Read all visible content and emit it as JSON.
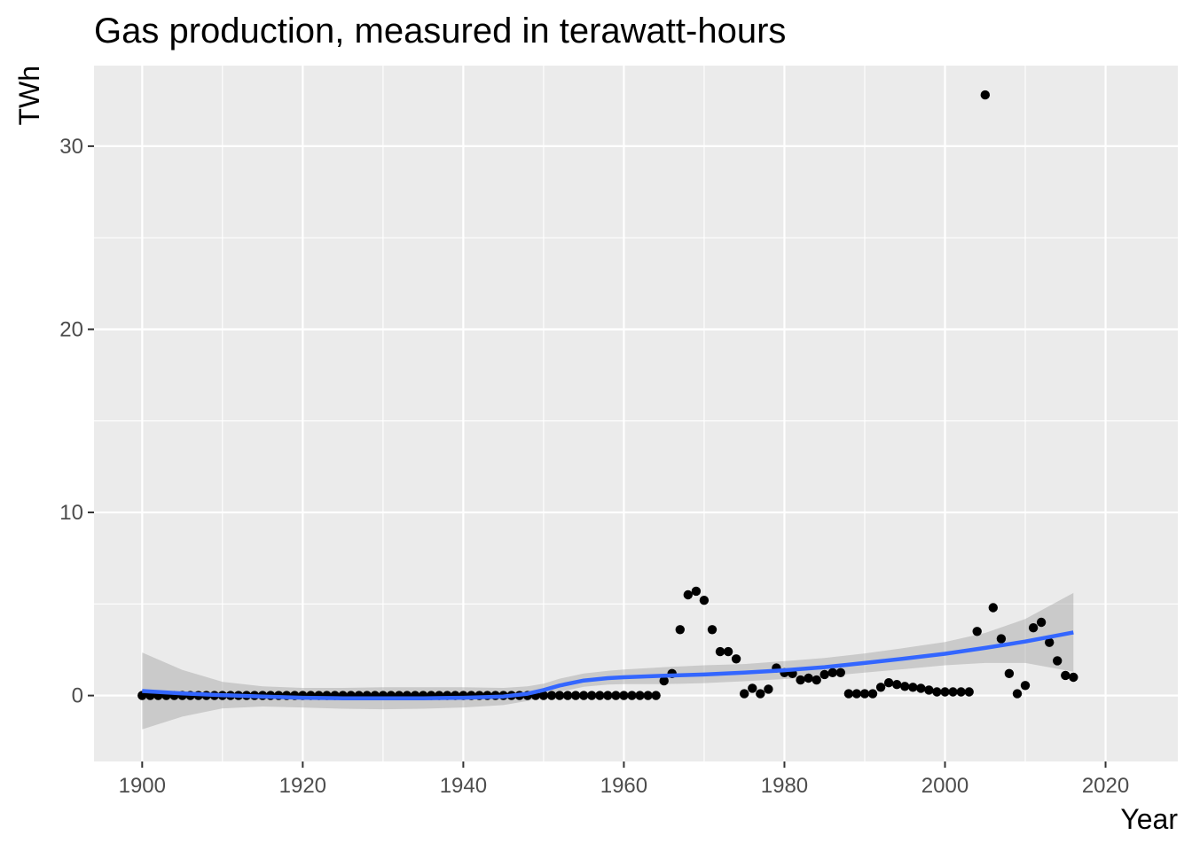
{
  "chart_data": {
    "type": "scatter",
    "title": "Gas production, measured in terawatt-hours",
    "xlabel": "Year",
    "ylabel": "TWh",
    "xlim": [
      1894,
      2029
    ],
    "ylim": [
      -3.6,
      34.4
    ],
    "x_ticks": [
      1900,
      1920,
      1940,
      1960,
      1980,
      2000,
      2020
    ],
    "x_tick_labels": [
      "1900",
      "1920",
      "1940",
      "1960",
      "1980",
      "2000",
      "2020"
    ],
    "y_ticks": [
      0,
      10,
      20,
      30
    ],
    "y_tick_labels": [
      "0",
      "10",
      "20",
      "30"
    ],
    "grid": true,
    "colors": {
      "panel_background": "#ebebeb",
      "grid_line": "#ffffff",
      "points": "#000000",
      "smooth_line": "#3366ff",
      "ribbon": "#999999"
    },
    "series": [
      {
        "type": "scatter",
        "x": [
          1900,
          1901,
          1902,
          1903,
          1904,
          1905,
          1906,
          1907,
          1908,
          1909,
          1910,
          1911,
          1912,
          1913,
          1914,
          1915,
          1916,
          1917,
          1918,
          1919,
          1920,
          1921,
          1922,
          1923,
          1924,
          1925,
          1926,
          1927,
          1928,
          1929,
          1930,
          1931,
          1932,
          1933,
          1934,
          1935,
          1936,
          1937,
          1938,
          1939,
          1940,
          1941,
          1942,
          1943,
          1944,
          1945,
          1946,
          1947,
          1948,
          1949,
          1950,
          1951,
          1952,
          1953,
          1954,
          1955,
          1956,
          1957,
          1958,
          1959,
          1960,
          1961,
          1962,
          1963,
          1964,
          1965,
          1966,
          1967,
          1968,
          1969,
          1970,
          1971,
          1972,
          1973,
          1974,
          1975,
          1976,
          1977,
          1978,
          1979,
          1980,
          1981,
          1982,
          1983,
          1984,
          1985,
          1986,
          1987,
          1988,
          1989,
          1990,
          1991,
          1992,
          1993,
          1994,
          1995,
          1996,
          1997,
          1998,
          1999,
          2000,
          2001,
          2002,
          2003,
          2004,
          2005,
          2006,
          2007,
          2008,
          2009,
          2010,
          2011,
          2012,
          2013,
          2014,
          2015,
          2016
        ],
        "values": [
          0,
          0,
          0,
          0,
          0,
          0,
          0,
          0,
          0,
          0,
          0,
          0,
          0,
          0,
          0,
          0,
          0,
          0,
          0,
          0,
          0,
          0,
          0,
          0,
          0,
          0,
          0,
          0,
          0,
          0,
          0,
          0,
          0,
          0,
          0,
          0,
          0,
          0,
          0,
          0,
          0,
          0,
          0,
          0,
          0,
          0,
          0,
          0,
          0,
          0,
          0,
          0,
          0,
          0,
          0,
          0,
          0,
          0,
          0,
          0,
          0,
          0,
          0,
          0,
          0,
          0.8,
          1.2,
          3.6,
          5.5,
          5.7,
          5.2,
          3.6,
          2.4,
          2.4,
          2,
          0.1,
          0.4,
          0.1,
          0.35,
          1.5,
          1.25,
          1.2,
          0.85,
          0.95,
          0.85,
          1.15,
          1.25,
          1.25,
          0.1,
          0.1,
          0.1,
          0.1,
          0.45,
          0.7,
          0.6,
          0.5,
          0.45,
          0.4,
          0.3,
          0.2,
          0.2,
          0.2,
          0.2,
          0.2,
          3.5,
          32.8,
          4.8,
          3.1,
          1.2,
          0.1,
          0.55,
          3.7,
          4,
          2.9,
          1.9,
          1.1,
          1
        ]
      },
      {
        "type": "line",
        "x": [
          1900,
          1905,
          1910,
          1915,
          1920,
          1925,
          1930,
          1935,
          1940,
          1945,
          1948,
          1950,
          1952,
          1955,
          1958,
          1960,
          1965,
          1970,
          1975,
          1980,
          1985,
          1990,
          1995,
          2000,
          2005,
          2010,
          2016
        ],
        "values": [
          0.25,
          0.12,
          0.02,
          -0.05,
          -0.12,
          -0.15,
          -0.15,
          -0.15,
          -0.12,
          -0.05,
          0.1,
          0.3,
          0.55,
          0.82,
          0.95,
          1.0,
          1.08,
          1.15,
          1.25,
          1.38,
          1.55,
          1.78,
          2.02,
          2.28,
          2.6,
          2.95,
          3.45
        ],
        "lower": [
          -1.85,
          -1.15,
          -0.7,
          -0.6,
          -0.65,
          -0.72,
          -0.75,
          -0.72,
          -0.65,
          -0.52,
          -0.3,
          -0.05,
          0.2,
          0.48,
          0.6,
          0.62,
          0.62,
          0.68,
          0.78,
          0.9,
          1.05,
          1.25,
          1.45,
          1.65,
          1.78,
          1.78,
          1.3
        ],
        "upper": [
          2.35,
          1.4,
          0.75,
          0.5,
          0.42,
          0.42,
          0.45,
          0.45,
          0.45,
          0.42,
          0.5,
          0.65,
          0.92,
          1.2,
          1.35,
          1.42,
          1.55,
          1.65,
          1.72,
          1.88,
          2.05,
          2.3,
          2.6,
          2.92,
          3.42,
          4.18,
          5.6
        ]
      }
    ]
  }
}
